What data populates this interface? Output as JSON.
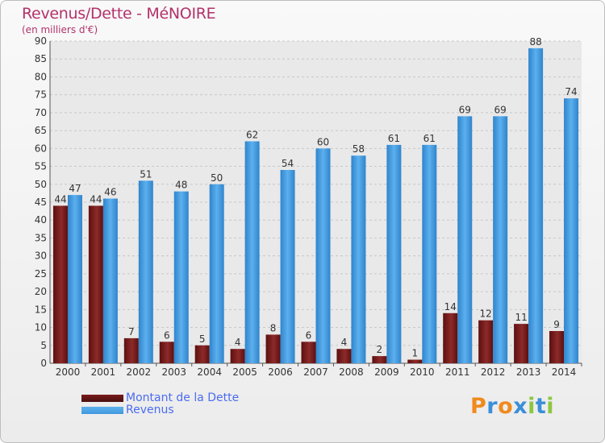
{
  "header": {
    "title": "Revenus/Dette - MéNOIRE",
    "subtitle": "(en milliers d'€)"
  },
  "legend": [
    {
      "label": "Montant de la Dette",
      "color": "#7a1b1b"
    },
    {
      "label": "Revenus",
      "color": "#3f98de"
    }
  ],
  "logo": {
    "text": "Proxiti",
    "colors": [
      "#f08a1e",
      "#3a8fd8",
      "#f08a1e",
      "#3a8fd8",
      "#8cc63f",
      "#3a8fd8",
      "#8cc63f"
    ]
  },
  "chart_data": {
    "type": "bar",
    "title": "Revenus/Dette - MéNOIRE",
    "subtitle": "(en milliers d'€)",
    "xlabel": "",
    "ylabel": "",
    "categories": [
      "2000",
      "2001",
      "2002",
      "2003",
      "2004",
      "2005",
      "2006",
      "2007",
      "2008",
      "2009",
      "2010",
      "2011",
      "2012",
      "2013",
      "2014"
    ],
    "series": [
      {
        "name": "Montant de la Dette",
        "color": "#7a1b1b",
        "values": [
          44,
          44,
          7,
          6,
          5,
          4,
          8,
          6,
          4,
          2,
          1,
          14,
          12,
          11,
          9
        ]
      },
      {
        "name": "Revenus",
        "color": "#3f98de",
        "values": [
          47,
          46,
          51,
          48,
          50,
          62,
          54,
          60,
          58,
          61,
          61,
          69,
          69,
          88,
          74
        ]
      }
    ],
    "ylim": [
      0,
      90
    ],
    "yticks": [
      0,
      5,
      10,
      15,
      20,
      25,
      30,
      35,
      40,
      45,
      50,
      55,
      60,
      65,
      70,
      75,
      80,
      85,
      90
    ],
    "grid": true,
    "legend_position": "bottom-left"
  }
}
